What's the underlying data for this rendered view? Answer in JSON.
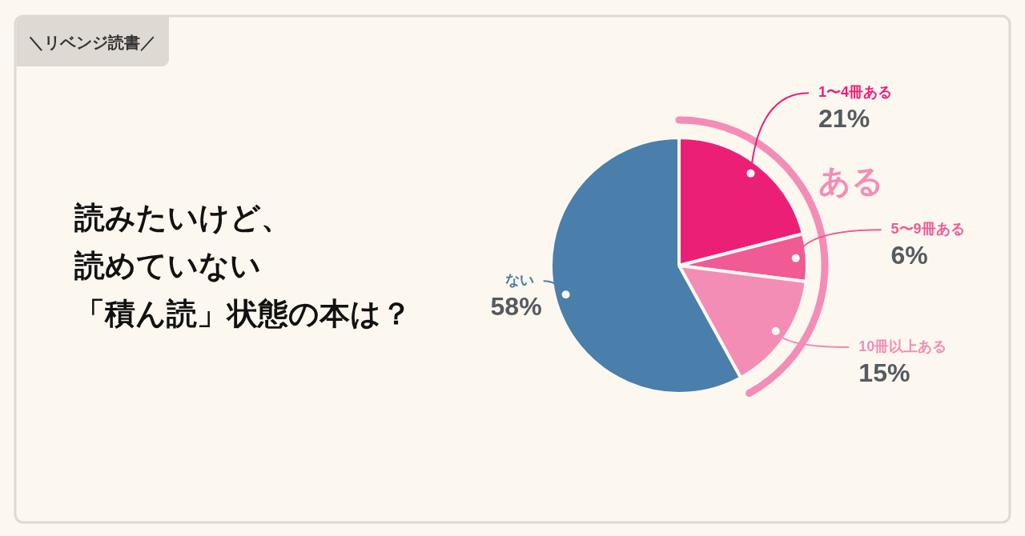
{
  "chart_data": {
    "type": "pie",
    "title": "読みたいけど、読めていない「積ん読」状態の本は？",
    "subtitle": "＼リベンジ読書／",
    "categories": [
      "1〜4冊ある",
      "5〜9冊ある",
      "10冊以上ある",
      "ない"
    ],
    "values": [
      21,
      6,
      15,
      58
    ],
    "value_labels": [
      "21%",
      "6%",
      "15%",
      "58%"
    ],
    "colors": [
      "#ec1f77",
      "#f05a95",
      "#f48db5",
      "#4a7eab"
    ],
    "annotations": [
      "ある"
    ]
  }
}
